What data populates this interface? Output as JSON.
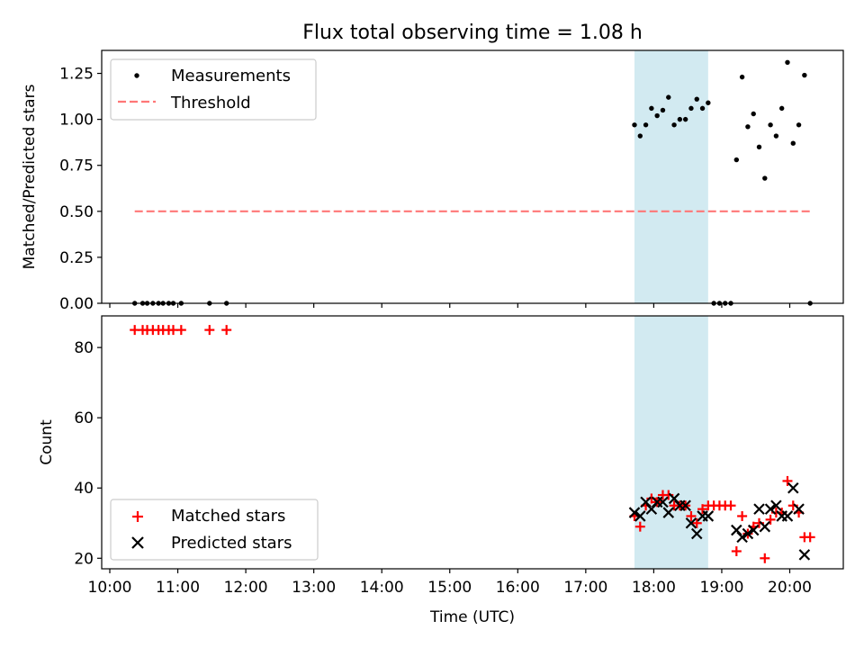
{
  "title": "Flux total observing time = 1.08 h",
  "xlabel": "Time (UTC)",
  "x_tick_labels": [
    "10:00",
    "11:00",
    "12:00",
    "13:00",
    "14:00",
    "15:00",
    "16:00",
    "17:00",
    "18:00",
    "19:00",
    "20:00"
  ],
  "highlight_color": "#add8e6",
  "chart_data": [
    {
      "type": "scatter",
      "ylabel": "Matched/Predicted stars",
      "ylim": [
        0,
        1.375
      ],
      "yticks": [
        "0.00",
        "0.25",
        "0.50",
        "0.75",
        "1.00",
        "1.25"
      ],
      "highlight_span": [
        "17:43",
        "18:48"
      ],
      "legend": {
        "position": "upper-left",
        "entries": [
          "Measurements",
          "Threshold"
        ]
      },
      "series": [
        {
          "name": "Measurements",
          "color": "#000000",
          "marker": "dot",
          "points": [
            [
              "10:22",
              0
            ],
            [
              "10:29",
              0
            ],
            [
              "10:33",
              0
            ],
            [
              "10:38",
              0
            ],
            [
              "10:43",
              0
            ],
            [
              "10:47",
              0
            ],
            [
              "10:52",
              0
            ],
            [
              "10:56",
              0
            ],
            [
              "11:03",
              0
            ],
            [
              "11:28",
              0
            ],
            [
              "11:43",
              0
            ],
            [
              "17:43",
              0.97
            ],
            [
              "17:48",
              0.91
            ],
            [
              "17:53",
              0.97
            ],
            [
              "17:58",
              1.06
            ],
            [
              "18:03",
              1.02
            ],
            [
              "18:08",
              1.05
            ],
            [
              "18:13",
              1.12
            ],
            [
              "18:18",
              0.97
            ],
            [
              "18:23",
              1.0
            ],
            [
              "18:28",
              1.0
            ],
            [
              "18:33",
              1.06
            ],
            [
              "18:38",
              1.11
            ],
            [
              "18:43",
              1.06
            ],
            [
              "18:48",
              1.09
            ],
            [
              "18:53",
              0
            ],
            [
              "18:58",
              0
            ],
            [
              "19:03",
              0
            ],
            [
              "19:08",
              0
            ],
            [
              "19:13",
              0.78
            ],
            [
              "19:18",
              1.23
            ],
            [
              "19:23",
              0.96
            ],
            [
              "19:28",
              1.03
            ],
            [
              "19:33",
              0.85
            ],
            [
              "19:38",
              0.68
            ],
            [
              "19:43",
              0.97
            ],
            [
              "19:48",
              0.91
            ],
            [
              "19:53",
              1.06
            ],
            [
              "19:58",
              1.31
            ],
            [
              "20:03",
              0.87
            ],
            [
              "20:08",
              0.97
            ],
            [
              "20:13",
              1.24
            ],
            [
              "20:18",
              0
            ]
          ]
        },
        {
          "name": "Threshold",
          "color": "#ff7777",
          "style": "dashed",
          "points": [
            [
              "10:22",
              0.5
            ],
            [
              "20:18",
              0.5
            ]
          ]
        }
      ]
    },
    {
      "type": "scatter",
      "ylabel": "Count",
      "ylim": [
        17,
        89
      ],
      "yticks": [
        "20",
        "40",
        "60",
        "80"
      ],
      "highlight_span": [
        "17:43",
        "18:48"
      ],
      "legend": {
        "position": "lower-left",
        "entries": [
          "Matched stars",
          "Predicted stars"
        ]
      },
      "series": [
        {
          "name": "Matched stars",
          "color": "#ff0000",
          "marker": "plus",
          "points": [
            [
              "10:22",
              85
            ],
            [
              "10:29",
              85
            ],
            [
              "10:33",
              85
            ],
            [
              "10:38",
              85
            ],
            [
              "10:43",
              85
            ],
            [
              "10:47",
              85
            ],
            [
              "10:52",
              85
            ],
            [
              "10:56",
              85
            ],
            [
              "11:03",
              85
            ],
            [
              "11:28",
              85
            ],
            [
              "11:43",
              85
            ],
            [
              "17:43",
              32
            ],
            [
              "17:48",
              29
            ],
            [
              "17:53",
              35
            ],
            [
              "17:58",
              37
            ],
            [
              "18:03",
              36
            ],
            [
              "18:08",
              38
            ],
            [
              "18:13",
              38
            ],
            [
              "18:18",
              35
            ],
            [
              "18:23",
              35
            ],
            [
              "18:28",
              35
            ],
            [
              "18:33",
              32
            ],
            [
              "18:38",
              30
            ],
            [
              "18:43",
              34
            ],
            [
              "18:48",
              35
            ],
            [
              "18:53",
              35
            ],
            [
              "18:58",
              35
            ],
            [
              "19:03",
              35
            ],
            [
              "19:08",
              35
            ],
            [
              "19:13",
              22
            ],
            [
              "19:18",
              32
            ],
            [
              "19:23",
              27
            ],
            [
              "19:28",
              29
            ],
            [
              "19:33",
              30
            ],
            [
              "19:38",
              20
            ],
            [
              "19:43",
              31
            ],
            [
              "19:48",
              33
            ],
            [
              "19:53",
              33
            ],
            [
              "19:58",
              42
            ],
            [
              "20:03",
              35
            ],
            [
              "20:08",
              33
            ],
            [
              "20:13",
              26
            ],
            [
              "20:18",
              26
            ]
          ]
        },
        {
          "name": "Predicted stars",
          "color": "#000000",
          "marker": "x",
          "points": [
            [
              "17:43",
              33
            ],
            [
              "17:48",
              32
            ],
            [
              "17:53",
              36
            ],
            [
              "17:58",
              34
            ],
            [
              "18:03",
              36
            ],
            [
              "18:08",
              36
            ],
            [
              "18:13",
              33
            ],
            [
              "18:18",
              37
            ],
            [
              "18:23",
              35
            ],
            [
              "18:28",
              35
            ],
            [
              "18:33",
              30
            ],
            [
              "18:38",
              27
            ],
            [
              "18:43",
              32
            ],
            [
              "18:48",
              32
            ],
            [
              "19:13",
              28
            ],
            [
              "19:18",
              26
            ],
            [
              "19:23",
              27
            ],
            [
              "19:28",
              28
            ],
            [
              "19:33",
              34
            ],
            [
              "19:38",
              29
            ],
            [
              "19:43",
              34
            ],
            [
              "19:48",
              35
            ],
            [
              "19:53",
              32
            ],
            [
              "19:58",
              32
            ],
            [
              "20:03",
              40
            ],
            [
              "20:08",
              34
            ],
            [
              "20:13",
              21
            ]
          ]
        }
      ]
    }
  ]
}
